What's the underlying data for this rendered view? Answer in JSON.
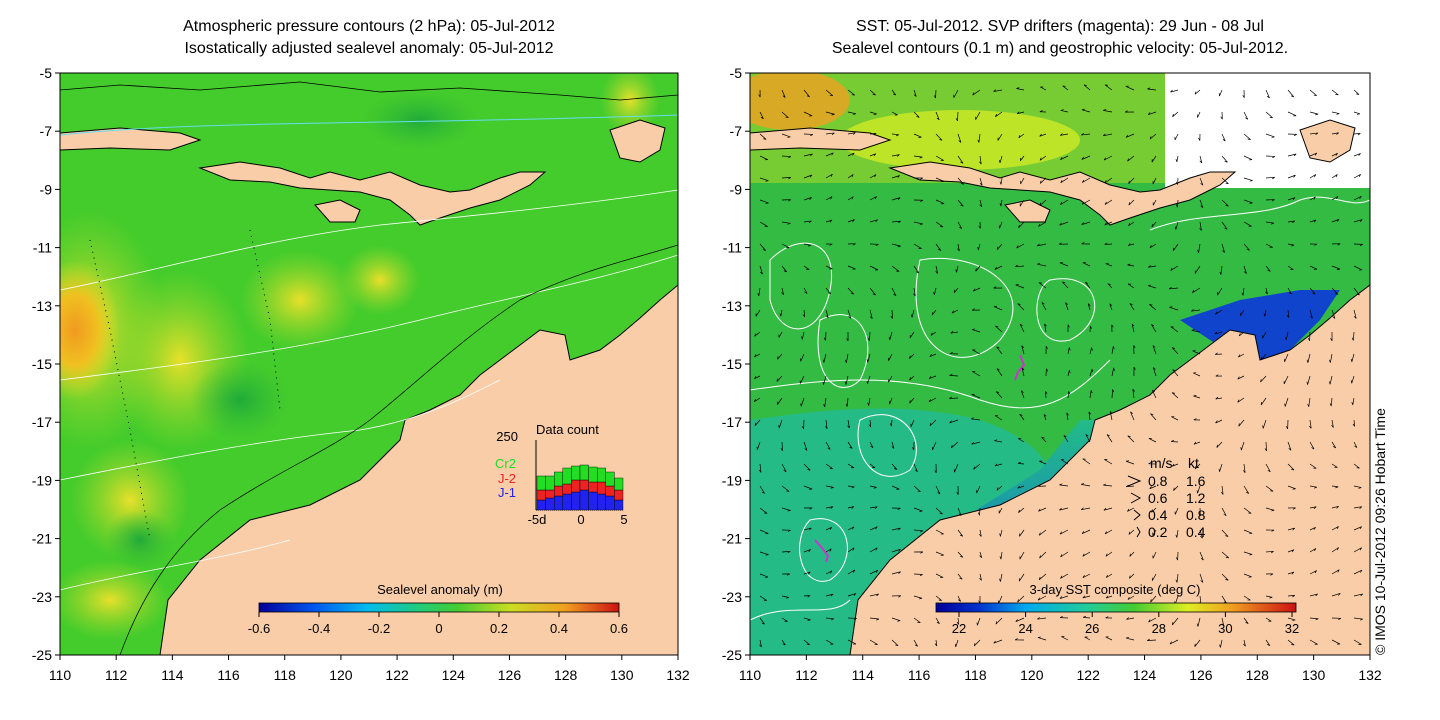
{
  "left_panel": {
    "title_line1": "Atmospheric pressure contours (2 hPa): 05-Jul-2012",
    "title_line2": "Isostatically adjusted sealevel anomaly: 05-Jul-2012",
    "colorbar_label": "Sealevel anomaly (m)",
    "colorbar_ticks": [
      "-0.6",
      "-0.4",
      "-0.2",
      "0",
      "0.2",
      "0.4",
      "0.6"
    ],
    "inset": {
      "title": "Data count",
      "ymax_label": "250",
      "series_labels": [
        "Cr2",
        "J-2",
        "J-1"
      ],
      "series_colors": [
        "#22dd22",
        "#ee2222",
        "#2222ee"
      ],
      "xticks": [
        "-5d",
        "0",
        "5"
      ]
    }
  },
  "right_panel": {
    "title_line1": "SST: 05-Jul-2012. SVP drifters (magenta): 29 Jun - 08 Jul",
    "title_line2": "Sealevel contours (0.1 m) and geostrophic velocity: 05-Jul-2012.",
    "colorbar_label": "3-day SST composite (deg C)",
    "colorbar_ticks": [
      "22",
      "24",
      "26",
      "28",
      "30",
      "32"
    ],
    "legend": {
      "header_ms": "m/s",
      "header_kt": "kt",
      "rows": [
        {
          "ms": "0.8",
          "kt": "1.6"
        },
        {
          "ms": "0.6",
          "kt": "1.2"
        },
        {
          "ms": "0.4",
          "kt": "0.8"
        },
        {
          "ms": "0.2",
          "kt": "0.4"
        }
      ]
    }
  },
  "axes": {
    "x_ticks": [
      "110",
      "112",
      "114",
      "116",
      "118",
      "120",
      "122",
      "124",
      "126",
      "128",
      "130",
      "132"
    ],
    "y_ticks": [
      "-5",
      "-7",
      "-9",
      "-11",
      "-13",
      "-15",
      "-17",
      "-19",
      "-21",
      "-23",
      "-25"
    ]
  },
  "copyright": "© IMOS 10-Jul-2012 09:26 Hobart Time",
  "colors": {
    "land": "#f9cda8",
    "ocean_green": "#44cc2c",
    "anomaly_yellow": "#d8e02a",
    "anomaly_orange": "#f0a020",
    "sst_green": "#33bb44",
    "sst_cyan": "#22aadd",
    "sst_blue": "#1144cc"
  }
}
